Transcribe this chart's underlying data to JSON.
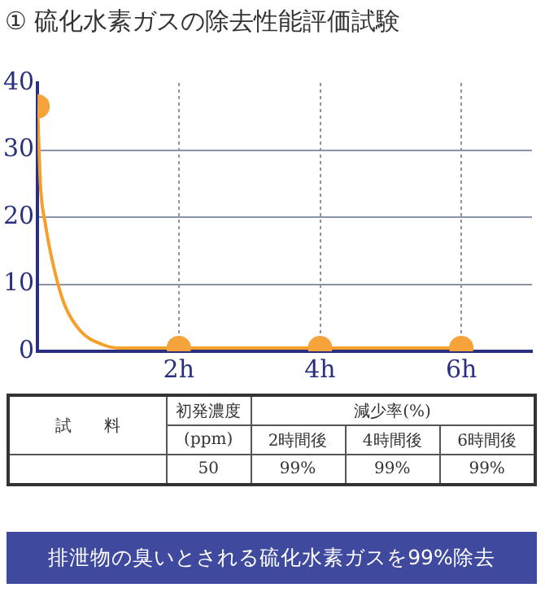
{
  "chart_data": {
    "type": "line",
    "title": "① 硫化水素ガスの除去性能評価試験",
    "series": [
      {
        "color": "#f5a02a",
        "x": [
          0,
          0.04,
          0.11,
          0.23,
          0.38,
          0.61,
          0.92,
          1.15,
          2,
          4,
          6
        ],
        "values": [
          36.5,
          25,
          19,
          12.5,
          7,
          3,
          1,
          0.5,
          0.5,
          0.5,
          0.5
        ],
        "marker": "none"
      },
      {
        "type": "scatter",
        "color": "#f5a43c",
        "x": [
          0,
          2,
          4,
          6
        ],
        "values": [
          36.5,
          0.5,
          0.5,
          0.5
        ],
        "marker": "circle"
      }
    ],
    "xlim": [
      0,
      7
    ],
    "xticks": [
      {
        "value": 2,
        "label": "2h"
      },
      {
        "value": 4,
        "label": "4h"
      },
      {
        "value": 6,
        "label": "6h"
      }
    ],
    "ylim": [
      0,
      40
    ],
    "yticks": [
      0,
      10,
      20,
      30,
      40
    ],
    "grid": true,
    "legend": false,
    "annotations": [
      "試　　料",
      "初発濃度",
      "減少率(%)",
      "(ppm)",
      "2時間後",
      "4時間後",
      "6時間後",
      "50",
      "99%",
      "99%",
      "99%",
      "排泄物の臭いとされる硫化水素ガスを99%除去"
    ]
  }
}
